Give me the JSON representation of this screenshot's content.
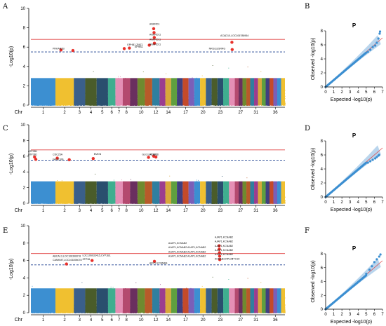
{
  "figure": {
    "panel_letters": [
      "A",
      "B",
      "C",
      "D",
      "E",
      "F"
    ]
  },
  "chart_data": [
    {
      "type": "scatter",
      "kind": "manhattan",
      "panel": "A",
      "ylabel": "-Log10(p)",
      "xlabel": "Chr",
      "ylim": [
        0,
        10
      ],
      "yticks": [
        0,
        2,
        4,
        6,
        8,
        10
      ],
      "x_tick_labels": [
        "1",
        "2",
        "3",
        "4",
        "5",
        "6",
        "7",
        "8",
        "10",
        "12",
        "14",
        "17",
        "20",
        "23",
        "27",
        "31",
        "36"
      ],
      "chromosomes": 38,
      "chromosome_colors": [
        "#3c8fd1",
        "#f0c030",
        "#3a5f8a",
        "#4a5c2a",
        "#2a4f6e",
        "#3fae8f",
        "#e58fb5",
        "#b44a6f",
        "#6a2f5f",
        "#6f8a2f",
        "#b85a2a",
        "#2f7f9f",
        "#9b3d8f",
        "#d8a83a",
        "#5f9f3f",
        "#3f3f7f",
        "#c44a2a",
        "#7a5fb8"
      ],
      "significance_line": 6.8,
      "suggestive_line": 5.5,
      "significance_color": "#e04040",
      "suggestive_color": "#1a3f8f",
      "highlight_color": "#e8302a",
      "hits": [
        {
          "chr": 2,
          "pos": 0.3,
          "p": 5.7
        },
        {
          "chr": 2,
          "pos": 0.95,
          "p": 5.65
        },
        {
          "chr": 8,
          "pos": 0.2,
          "p": 5.85
        },
        {
          "chr": 8,
          "pos": 0.9,
          "p": 5.9
        },
        {
          "chr": 11,
          "pos": 0.6,
          "p": 6.2
        },
        {
          "chr": 12,
          "pos": 0.2,
          "p": 7.9
        },
        {
          "chr": 12,
          "pos": 0.25,
          "p": 7.5
        },
        {
          "chr": 12,
          "pos": 0.28,
          "p": 7.0
        },
        {
          "chr": 12,
          "pos": 0.3,
          "p": 6.4
        },
        {
          "chr": 25,
          "pos": 0.5,
          "p": 6.5
        },
        {
          "chr": 25,
          "pos": 0.55,
          "p": 5.75
        }
      ],
      "gene_labels": [
        {
          "chr": 12,
          "p": 8.3,
          "text": "ANKRD1"
        },
        {
          "chr": 12,
          "p": 7.2,
          "text": "ANKRD11"
        },
        {
          "chr": 12,
          "p": 6.7,
          "text": "ANKRD11"
        },
        {
          "chr": 12,
          "p": 6.2,
          "text": "ANKRD11"
        },
        {
          "chr": 9,
          "p": 6.15,
          "text": "EPHB1 ZMZ1"
        },
        {
          "chr": 10,
          "p": 5.95,
          "text": "EPHB1"
        },
        {
          "chr": 24,
          "p": 7.1,
          "text": "ACAD10,LOC106788964"
        },
        {
          "chr": 2,
          "p": 5.75,
          "text": "PRKAR2B"
        },
        {
          "chr": 22,
          "p": 5.75,
          "text": "NRG3,ESRRG"
        }
      ]
    },
    {
      "type": "scatter",
      "kind": "qq",
      "panel": "B",
      "title": "P",
      "xlabel": "Expected -log10(p)",
      "ylabel": "Observed -log10(p)",
      "xlim": [
        0,
        7
      ],
      "ylim": [
        0,
        8
      ],
      "xticks": [
        0,
        1,
        2,
        3,
        4,
        5,
        6,
        7
      ],
      "yticks": [
        0,
        2,
        4,
        6,
        8
      ],
      "tail_points": [
        [
          5.2,
          5.0
        ],
        [
          5.5,
          5.3
        ],
        [
          5.8,
          5.7
        ],
        [
          6.1,
          5.9
        ],
        [
          6.3,
          6.3
        ],
        [
          6.5,
          6.9
        ],
        [
          6.65,
          7.6
        ],
        [
          6.7,
          7.9
        ]
      ]
    },
    {
      "type": "scatter",
      "kind": "manhattan",
      "panel": "C",
      "ylabel": "-Log10(p)",
      "xlabel": "Chr",
      "ylim": [
        0,
        10
      ],
      "yticks": [
        0,
        2,
        4,
        6,
        8,
        10
      ],
      "x_tick_labels": [
        "1",
        "2",
        "3",
        "4",
        "5",
        "6",
        "7",
        "8",
        "10",
        "12",
        "14",
        "17",
        "20",
        "23",
        "27",
        "31",
        "36"
      ],
      "chromosomes": 38,
      "significance_line": 6.8,
      "suggestive_line": 5.5,
      "significance_color": "#e04040",
      "suggestive_color": "#1a3f8f",
      "highlight_color": "#e8302a",
      "hits": [
        {
          "chr": 1,
          "pos": 0.15,
          "p": 5.9
        },
        {
          "chr": 1,
          "pos": 0.2,
          "p": 5.6
        },
        {
          "chr": 2,
          "pos": 0.1,
          "p": 5.75
        },
        {
          "chr": 2,
          "pos": 0.75,
          "p": 5.55
        },
        {
          "chr": 4,
          "pos": 0.7,
          "p": 5.7
        },
        {
          "chr": 11,
          "pos": 0.5,
          "p": 5.85
        },
        {
          "chr": 12,
          "pos": 0.2,
          "p": 6.0
        },
        {
          "chr": 12,
          "pos": 0.5,
          "p": 5.9
        }
      ],
      "gene_labels": [
        {
          "chr": 1,
          "p": 6.5,
          "text": "ATP2B1"
        },
        {
          "chr": 1,
          "p": 6.1,
          "text": "ATP2B1"
        },
        {
          "chr": 2,
          "p": 6.1,
          "text": "CDC25A"
        },
        {
          "chr": 2,
          "p": 5.5,
          "text": "FAM110B"
        },
        {
          "chr": 5,
          "p": 6.15,
          "text": "EMCN"
        },
        {
          "chr": 11,
          "p": 6.1,
          "text": "GLG1,RFWD3"
        },
        {
          "chr": 12,
          "p": 6.1,
          "text": "ACSF3"
        }
      ]
    },
    {
      "type": "scatter",
      "kind": "qq",
      "panel": "D",
      "title": "P",
      "xlabel": "Expected -log10(p)",
      "ylabel": "Observed -log10(p)",
      "xlim": [
        0,
        7
      ],
      "ylim": [
        0,
        8
      ],
      "xticks": [
        0,
        1,
        2,
        3,
        4,
        5,
        6,
        7
      ],
      "yticks": [
        0,
        2,
        4,
        6,
        8
      ],
      "tail_points": [
        [
          5.2,
          4.9
        ],
        [
          5.5,
          5.1
        ],
        [
          5.8,
          5.3
        ],
        [
          6.1,
          5.5
        ],
        [
          6.3,
          5.7
        ],
        [
          6.5,
          5.9
        ],
        [
          6.6,
          6.0
        ]
      ]
    },
    {
      "type": "scatter",
      "kind": "manhattan",
      "panel": "E",
      "ylabel": "-Log10(p)",
      "xlabel": "Chr",
      "ylim": [
        0,
        10
      ],
      "yticks": [
        0,
        2,
        4,
        6,
        8,
        10
      ],
      "x_tick_labels": [
        "1",
        "2",
        "3",
        "4",
        "5",
        "6",
        "7",
        "8",
        "10",
        "12",
        "14",
        "17",
        "20",
        "23",
        "27",
        "31",
        "36"
      ],
      "chromosomes": 38,
      "significance_line": 6.8,
      "suggestive_line": 5.5,
      "significance_color": "#e04040",
      "suggestive_color": "#1a3f8f",
      "highlight_color": "#e8302a",
      "hits": [
        {
          "chr": 2,
          "pos": 0.6,
          "p": 5.6
        },
        {
          "chr": 4,
          "pos": 0.6,
          "p": 6.0
        },
        {
          "chr": 12,
          "pos": 0.3,
          "p": 5.9
        },
        {
          "chr": 23,
          "pos": 0.3,
          "p": 7.7
        },
        {
          "chr": 23,
          "pos": 0.32,
          "p": 7.3
        },
        {
          "chr": 23,
          "pos": 0.35,
          "p": 6.9
        },
        {
          "chr": 23,
          "pos": 0.38,
          "p": 6.5
        },
        {
          "chr": 23,
          "pos": 0.4,
          "p": 6.1
        }
      ],
      "gene_labels": [
        {
          "chr": 23,
          "p": 8.6,
          "text": "AJAP1,KCNAB2"
        },
        {
          "chr": 23,
          "p": 8.1,
          "text": "AJAP1,KCNAB2"
        },
        {
          "chr": 23,
          "p": 7.6,
          "text": "AJAP1,KCNAB2"
        },
        {
          "chr": 23,
          "p": 7.1,
          "text": "AJAP1,KCNAB2"
        },
        {
          "chr": 23,
          "p": 6.6,
          "text": "AJAP1,KCNAB2"
        },
        {
          "chr": 23,
          "p": 6.1,
          "text": "KCNAB2,RPL22"
        },
        {
          "chr": 15,
          "p": 7.9,
          "text": "AJAP1,KCNAB2"
        },
        {
          "chr": 15,
          "p": 7.4,
          "text": "AJAP1,KCNAB2 AJAP1,KCNAB2"
        },
        {
          "chr": 15,
          "p": 6.9,
          "text": "AJAP1,KCNAB2 AJAP1,KCNAB2"
        },
        {
          "chr": 15,
          "p": 6.4,
          "text": "AJAP1,KCNAB2 AJAP1,KCNAB2"
        },
        {
          "chr": 12,
          "p": 5.6,
          "text": "ARC2,KCNMB4"
        },
        {
          "chr": 2,
          "p": 6.4,
          "text": "ABCA13,LOC106396078"
        },
        {
          "chr": 2,
          "p": 5.95,
          "text": "CAMKMT,LOC106396078"
        },
        {
          "chr": 4,
          "p": 6.5,
          "text": "LOC106033415,CYP1B1"
        },
        {
          "chr": 4,
          "p": 6.05,
          "text": "ZFP36"
        },
        {
          "chr": 26,
          "p": 6.1,
          "text": "TTC34"
        }
      ]
    },
    {
      "type": "scatter",
      "kind": "qq",
      "panel": "F",
      "title": "P",
      "xlabel": "Expected -log10(p)",
      "ylabel": "Observed -log10(p)",
      "xlim": [
        0,
        7
      ],
      "ylim": [
        0,
        8
      ],
      "xticks": [
        0,
        1,
        2,
        3,
        4,
        5,
        6,
        7
      ],
      "yticks": [
        0,
        2,
        4,
        6,
        8
      ],
      "tail_points": [
        [
          5.0,
          5.1
        ],
        [
          5.4,
          5.7
        ],
        [
          5.7,
          6.2
        ],
        [
          6.0,
          6.8
        ],
        [
          6.3,
          7.2
        ],
        [
          6.6,
          7.6
        ],
        [
          6.75,
          7.9
        ]
      ]
    }
  ]
}
